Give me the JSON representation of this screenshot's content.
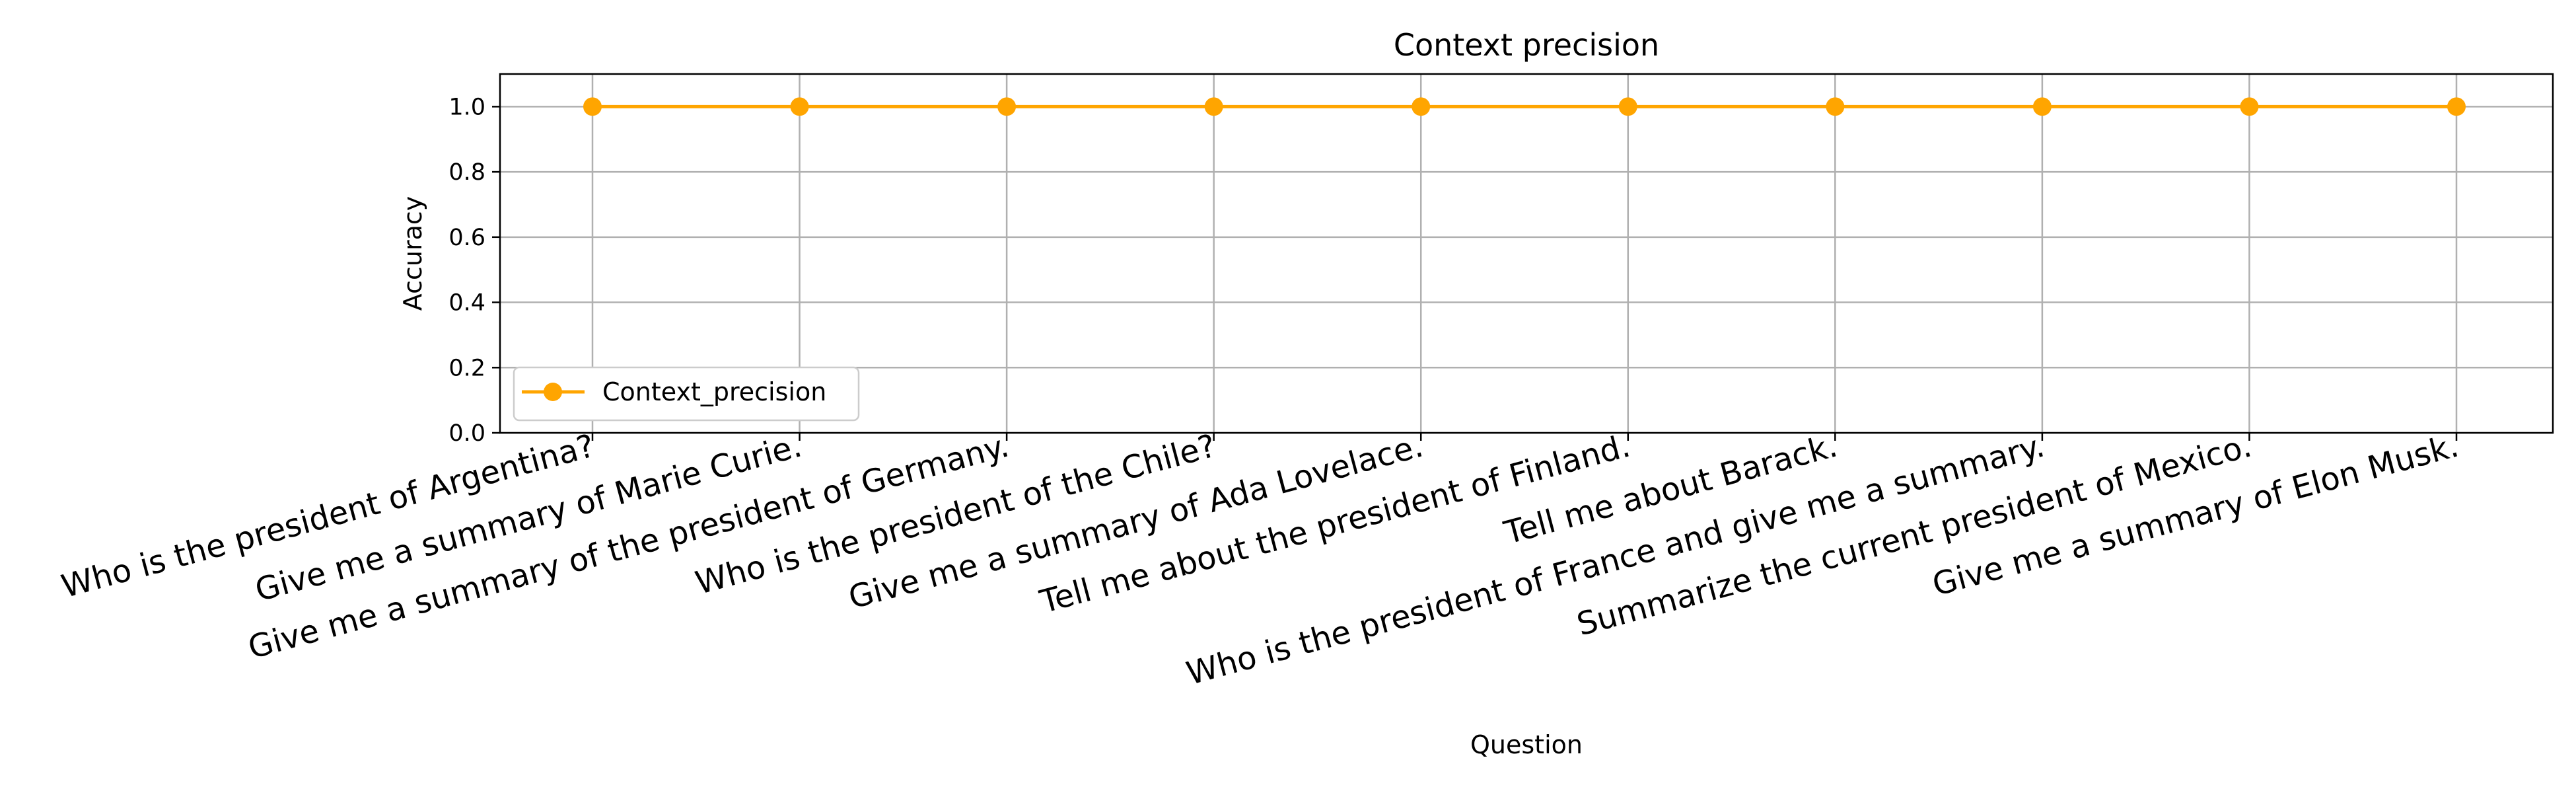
{
  "chart_data": {
    "type": "line",
    "title": "Context precision",
    "xlabel": "Question",
    "ylabel": "Accuracy",
    "ylim": [
      0.0,
      1.1
    ],
    "yticks": [
      0.0,
      0.2,
      0.4,
      0.6,
      0.8,
      1.0
    ],
    "ytick_labels": [
      "0.0",
      "0.2",
      "0.4",
      "0.6",
      "0.8",
      "1.0"
    ],
    "grid": true,
    "legend_position": "lower-left",
    "categories": [
      "Who is the president of Argentina?",
      "Give me a summary of Marie Curie.",
      "Give me a summary of the president of Germany.",
      "Who is the president of the Chile?",
      "Give me a summary of Ada Lovelace.",
      "Tell me about the president of Finland.",
      "Tell me about Barack.",
      "Who is the president of France and give me a summary.",
      "Summarize the current president of Mexico.",
      "Give me a summary of Elon Musk."
    ],
    "series": [
      {
        "name": "Context_precision",
        "color": "#ffa500",
        "marker": "circle",
        "values": [
          1.0,
          1.0,
          1.0,
          1.0,
          1.0,
          1.0,
          1.0,
          1.0,
          1.0,
          1.0
        ]
      }
    ]
  }
}
